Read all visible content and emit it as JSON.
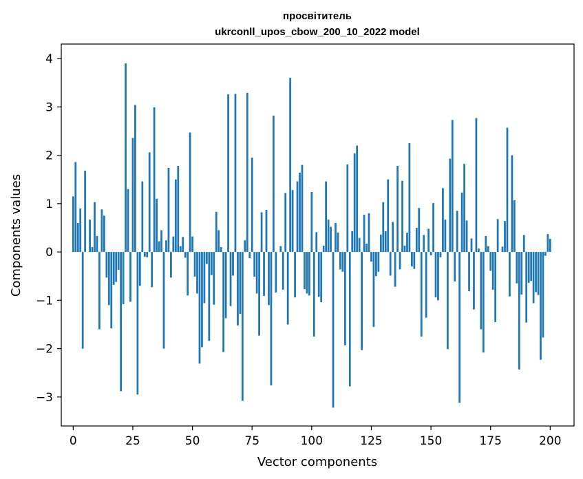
{
  "chart_data": {
    "type": "bar",
    "title": "просвітитель",
    "subtitle": "ukrconll_upos_cbow_200_10_2022 model",
    "xlabel": "Vector components",
    "ylabel": "Components values",
    "xlim": [
      -5,
      210
    ],
    "ylim": [
      -3.6,
      4.3
    ],
    "xticks": [
      0,
      25,
      50,
      75,
      100,
      125,
      150,
      175,
      200
    ],
    "xtick_labels": [
      "0",
      "25",
      "50",
      "75",
      "100",
      "125",
      "150",
      "175",
      "200"
    ],
    "yticks": [
      -3,
      -2,
      -1,
      0,
      1,
      2,
      3,
      4
    ],
    "ytick_labels": [
      "−3",
      "−2",
      "−1",
      "0",
      "1",
      "2",
      "3",
      "4"
    ],
    "bar_color": "#1f77b4",
    "grid": false,
    "x_start": 0,
    "values": [
      1.15,
      1.86,
      0.6,
      0.9,
      -2.0,
      1.68,
      0.0,
      0.67,
      0.1,
      1.03,
      0.33,
      -1.6,
      0.88,
      0.75,
      -0.53,
      -1.1,
      -1.58,
      -0.68,
      -0.62,
      -0.37,
      -2.88,
      -1.08,
      3.9,
      1.3,
      -1.03,
      2.36,
      3.04,
      -2.95,
      -0.7,
      1.46,
      -0.1,
      -0.11,
      2.06,
      -0.73,
      2.99,
      1.1,
      0.22,
      0.45,
      -2.0,
      0.24,
      1.74,
      -0.53,
      0.32,
      1.5,
      1.78,
      0.12,
      0.31,
      -0.12,
      -0.9,
      2.47,
      0.32,
      -0.51,
      -0.86,
      -2.31,
      -1.97,
      -1.06,
      -0.25,
      -1.84,
      -0.48,
      -1.09,
      0.83,
      0.45,
      0.1,
      -2.07,
      -1.37,
      3.26,
      -1.12,
      -0.49,
      3.27,
      -1.52,
      -1.28,
      -3.08,
      0.24,
      3.29,
      -0.13,
      1.95,
      -0.51,
      -0.86,
      -1.73,
      0.82,
      -0.91,
      0.87,
      -1.1,
      -2.76,
      2.82,
      -0.84,
      0.0,
      0.12,
      -0.78,
      1.22,
      -1.5,
      3.6,
      1.28,
      -0.94,
      1.46,
      1.64,
      1.8,
      -0.77,
      -0.86,
      -0.9,
      1.24,
      -1.75,
      0.41,
      -0.93,
      -1.04,
      0.13,
      1.46,
      0.67,
      0.52,
      -3.22,
      0.6,
      0.4,
      -0.36,
      -0.41,
      -1.93,
      1.81,
      -2.78,
      0.43,
      2.04,
      2.2,
      0.29,
      -2.03,
      0.77,
      0.17,
      0.8,
      -0.2,
      -1.55,
      -0.5,
      -0.41,
      0.36,
      1.03,
      0.43,
      1.5,
      -0.49,
      0.62,
      -0.72,
      1.78,
      -0.36,
      1.47,
      0.13,
      0.4,
      2.25,
      -0.3,
      -0.35,
      0.5,
      0.91,
      -1.75,
      0.35,
      -1.36,
      0.48,
      -0.07,
      1.01,
      -0.94,
      -1.0,
      -0.11,
      1.32,
      0.67,
      -2.01,
      1.93,
      2.73,
      -0.61,
      0.85,
      -3.12,
      1.23,
      1.82,
      0.65,
      -0.81,
      0.28,
      -1.19,
      2.77,
      0.07,
      -1.6,
      -2.08,
      0.33,
      0.12,
      -0.39,
      -0.78,
      -1.45,
      0.68,
      0.0,
      0.11,
      0.64,
      2.57,
      -0.92,
      2.0,
      1.07,
      -0.65,
      -2.43,
      -0.88,
      0.35,
      -1.46,
      -0.64,
      -0.6,
      -1.06,
      -0.83,
      -0.89,
      -2.23,
      -1.77,
      -0.08,
      0.37,
      0.27
    ]
  }
}
